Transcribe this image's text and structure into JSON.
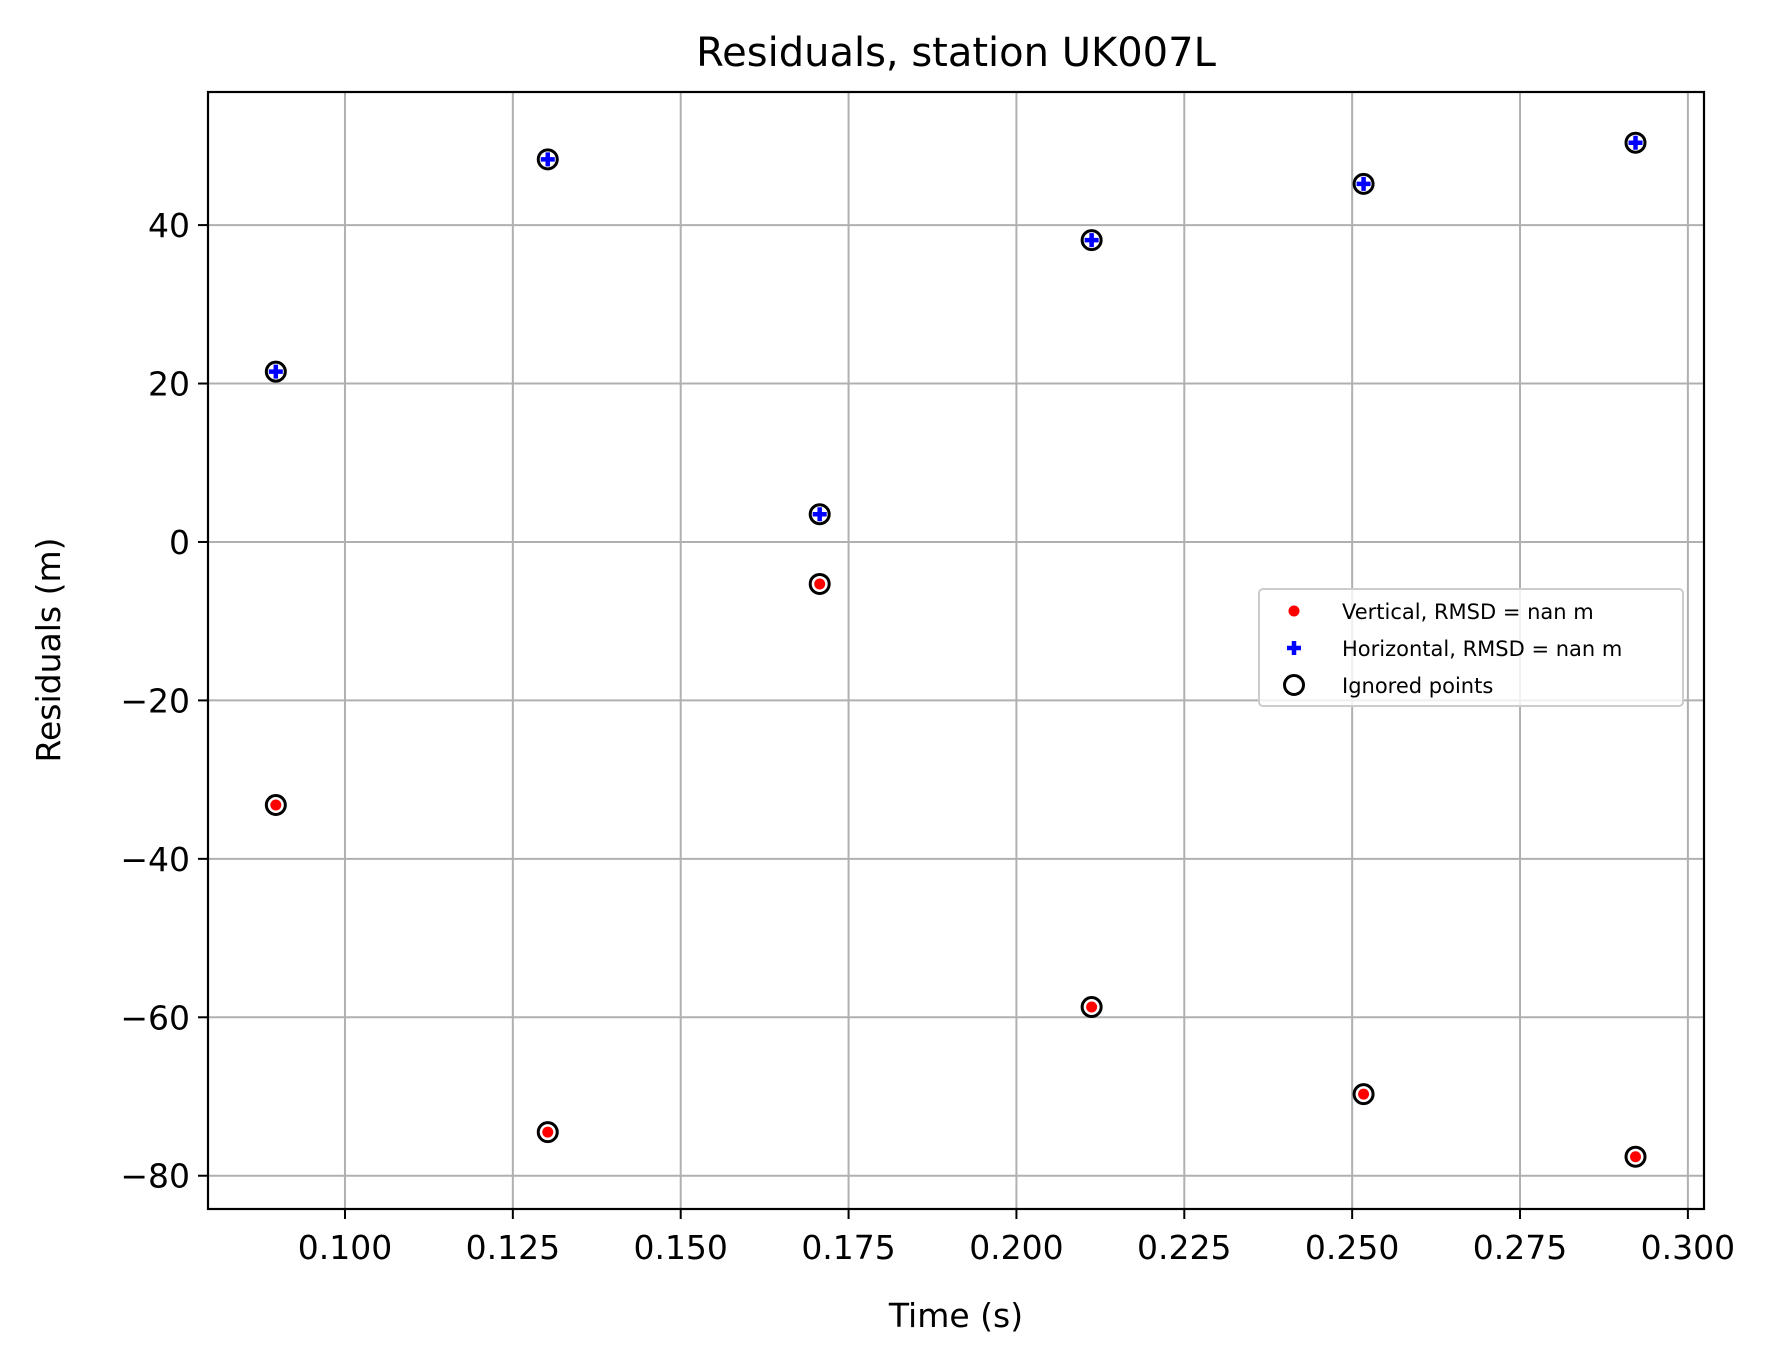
{
  "chart_data": {
    "type": "scatter",
    "title": "Residuals, station UK007L",
    "xlabel": "Time (s)",
    "ylabel": "Residuals (m)",
    "xlim": [
      0.0796,
      0.3024
    ],
    "ylim": [
      -84.2,
      56.8
    ],
    "xticks": [
      0.1,
      0.125,
      0.15,
      0.175,
      0.2,
      0.225,
      0.25,
      0.275,
      0.3
    ],
    "xtick_labels": [
      "0.100",
      "0.125",
      "0.150",
      "0.175",
      "0.200",
      "0.225",
      "0.250",
      "0.275",
      "0.300"
    ],
    "yticks": [
      -80,
      -60,
      -40,
      -20,
      0,
      20,
      40
    ],
    "ytick_labels": [
      "−80",
      "−60",
      "−40",
      "−20",
      "0",
      "20",
      "40"
    ],
    "grid": true,
    "legend_position": "center-right",
    "series": [
      {
        "name": "Vertical, RMSD = nan m",
        "marker": "dot",
        "color": "#ff0000",
        "x": [
          0.0897,
          0.1302,
          0.1707,
          0.2112,
          0.2517,
          0.2922
        ],
        "y": [
          -33.2,
          -74.5,
          -5.3,
          -58.7,
          -69.7,
          -77.6
        ]
      },
      {
        "name": "Horizontal, RMSD = nan m",
        "marker": "plus",
        "color": "#0000ff",
        "x": [
          0.0897,
          0.1302,
          0.1707,
          0.2112,
          0.2517,
          0.2922
        ],
        "y": [
          21.5,
          48.3,
          3.5,
          38.1,
          45.2,
          50.4
        ]
      },
      {
        "name": "Ignored points",
        "marker": "open-circle",
        "color": "#000000",
        "x": [
          0.0897,
          0.1302,
          0.1707,
          0.2112,
          0.2517,
          0.2922,
          0.0897,
          0.1302,
          0.1707,
          0.2112,
          0.2517,
          0.2922
        ],
        "y": [
          -33.2,
          -74.5,
          -5.3,
          -58.7,
          -69.7,
          -77.6,
          21.5,
          48.3,
          3.5,
          38.1,
          45.2,
          50.4
        ]
      }
    ]
  }
}
